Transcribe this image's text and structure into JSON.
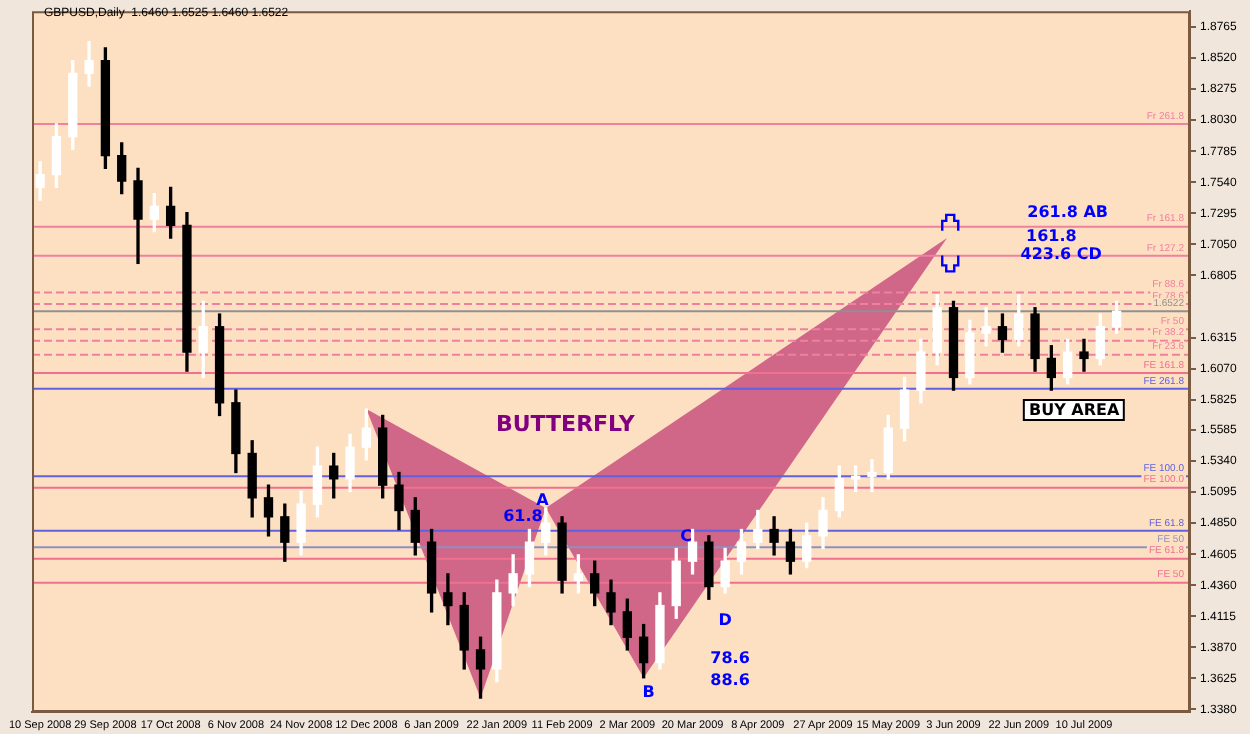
{
  "chart_data": {
    "type": "candlestick",
    "title": "GBPUSD,Daily  1.6460 1.6525 1.6460 1.6522",
    "categories": [
      "10 Sep 2008",
      null,
      null,
      null,
      "29 Sep 2008",
      null,
      null,
      null,
      "17 Oct 2008",
      null,
      null,
      null,
      "6 Nov 2008",
      null,
      null,
      null,
      "24 Nov 2008",
      null,
      null,
      null,
      "12 Dec 2008",
      null,
      null,
      null,
      "6 Jan 2009",
      null,
      null,
      null,
      "22 Jan 2009",
      null,
      null,
      null,
      "11 Feb 2009",
      null,
      null,
      null,
      "2 Mar 2009",
      null,
      null,
      null,
      "20 Mar 2009",
      null,
      null,
      null,
      "8 Apr 2009",
      null,
      null,
      null,
      "27 Apr 2009",
      null,
      null,
      null,
      "15 May 2009",
      null,
      null,
      null,
      "3 Jun 2009",
      null,
      null,
      null,
      "22 Jun 2009",
      null,
      null,
      null,
      "10 Jul 2009",
      null,
      null,
      null,
      null,
      null,
      null
    ],
    "ohlc": [
      [
        1.75,
        1.77,
        1.74,
        1.76
      ],
      [
        1.76,
        1.8,
        1.75,
        1.79
      ],
      [
        1.79,
        1.85,
        1.78,
        1.84
      ],
      [
        1.84,
        1.865,
        1.83,
        1.85
      ],
      [
        1.85,
        1.86,
        1.765,
        1.775
      ],
      [
        1.775,
        1.785,
        1.745,
        1.755
      ],
      [
        1.755,
        1.765,
        1.69,
        1.725
      ],
      [
        1.725,
        1.745,
        1.715,
        1.735
      ],
      [
        1.735,
        1.75,
        1.71,
        1.72
      ],
      [
        1.72,
        1.73,
        1.605,
        1.62
      ],
      [
        1.62,
        1.66,
        1.6,
        1.64
      ],
      [
        1.64,
        1.65,
        1.57,
        1.58
      ],
      [
        1.58,
        1.59,
        1.525,
        1.54
      ],
      [
        1.54,
        1.55,
        1.49,
        1.505
      ],
      [
        1.505,
        1.515,
        1.475,
        1.49
      ],
      [
        1.49,
        1.5,
        1.455,
        1.47
      ],
      [
        1.47,
        1.51,
        1.46,
        1.5
      ],
      [
        1.5,
        1.545,
        1.49,
        1.53
      ],
      [
        1.53,
        1.54,
        1.505,
        1.52
      ],
      [
        1.52,
        1.555,
        1.51,
        1.545
      ],
      [
        1.545,
        1.575,
        1.535,
        1.56
      ],
      [
        1.56,
        1.57,
        1.505,
        1.515
      ],
      [
        1.515,
        1.525,
        1.48,
        1.495
      ],
      [
        1.495,
        1.505,
        1.46,
        1.47
      ],
      [
        1.47,
        1.48,
        1.415,
        1.43
      ],
      [
        1.43,
        1.445,
        1.405,
        1.42
      ],
      [
        1.42,
        1.43,
        1.37,
        1.385
      ],
      [
        1.385,
        1.395,
        1.347,
        1.37
      ],
      [
        1.37,
        1.44,
        1.36,
        1.43
      ],
      [
        1.43,
        1.46,
        1.42,
        1.445
      ],
      [
        1.445,
        1.48,
        1.435,
        1.47
      ],
      [
        1.47,
        1.497,
        1.46,
        1.485
      ],
      [
        1.485,
        1.49,
        1.43,
        1.44
      ],
      [
        1.44,
        1.46,
        1.43,
        1.445
      ],
      [
        1.445,
        1.455,
        1.42,
        1.43
      ],
      [
        1.43,
        1.44,
        1.405,
        1.415
      ],
      [
        1.415,
        1.425,
        1.385,
        1.395
      ],
      [
        1.395,
        1.405,
        1.363,
        1.375
      ],
      [
        1.375,
        1.43,
        1.37,
        1.42
      ],
      [
        1.42,
        1.465,
        1.41,
        1.455
      ],
      [
        1.455,
        1.48,
        1.445,
        1.47
      ],
      [
        1.47,
        1.475,
        1.425,
        1.435
      ],
      [
        1.435,
        1.465,
        1.43,
        1.455
      ],
      [
        1.455,
        1.48,
        1.445,
        1.47
      ],
      [
        1.47,
        1.495,
        1.465,
        1.48
      ],
      [
        1.48,
        1.49,
        1.46,
        1.47
      ],
      [
        1.47,
        1.48,
        1.445,
        1.455
      ],
      [
        1.455,
        1.485,
        1.45,
        1.475
      ],
      [
        1.475,
        1.505,
        1.465,
        1.495
      ],
      [
        1.495,
        1.53,
        1.49,
        1.52
      ],
      [
        1.52,
        1.53,
        1.51,
        1.522
      ],
      [
        1.522,
        1.535,
        1.51,
        1.525
      ],
      [
        1.525,
        1.57,
        1.52,
        1.56
      ],
      [
        1.56,
        1.6,
        1.55,
        1.59
      ],
      [
        1.59,
        1.63,
        1.58,
        1.62
      ],
      [
        1.62,
        1.665,
        1.61,
        1.655
      ],
      [
        1.655,
        1.66,
        1.59,
        1.6
      ],
      [
        1.6,
        1.645,
        1.595,
        1.635
      ],
      [
        1.635,
        1.655,
        1.625,
        1.64
      ],
      [
        1.64,
        1.65,
        1.62,
        1.63
      ],
      [
        1.63,
        1.665,
        1.625,
        1.65
      ],
      [
        1.65,
        1.655,
        1.605,
        1.615
      ],
      [
        1.615,
        1.625,
        1.59,
        1.6
      ],
      [
        1.6,
        1.63,
        1.595,
        1.62
      ],
      [
        1.62,
        1.63,
        1.605,
        1.615
      ],
      [
        1.615,
        1.65,
        1.61,
        1.64
      ],
      [
        1.64,
        1.66,
        1.635,
        1.6522
      ],
      null,
      null,
      null,
      null
    ],
    "colors": [
      "#ffffff",
      "#ffffff",
      "#ffffff",
      "#ffffff",
      "#000000",
      "#000000",
      "#000000",
      "#ffffff",
      "#000000",
      "#000000",
      "#ffffff",
      "#000000",
      "#000000",
      "#000000",
      "#000000",
      "#000000",
      "#ffffff",
      "#ffffff",
      "#000000",
      "#ffffff",
      "#ffffff",
      "#000000",
      "#000000",
      "#000000",
      "#000000",
      "#000000",
      "#000000",
      "#000000",
      "#ffffff",
      "#ffffff",
      "#ffffff",
      "#ffffff",
      "#000000",
      "#ffffff",
      "#000000",
      "#000000",
      "#000000",
      "#000000",
      "#ffffff",
      "#ffffff",
      "#ffffff",
      "#000000",
      "#ffffff",
      "#ffffff",
      "#ffffff",
      "#000000",
      "#000000",
      "#ffffff",
      "#ffffff",
      "#ffffff",
      "#ffffff",
      "#ffffff",
      "#ffffff",
      "#ffffff",
      "#ffffff",
      "#ffffff",
      "#000000",
      "#ffffff",
      "#ffffff",
      "#000000",
      "#ffffff",
      "#000000",
      "#000000",
      "#ffffff",
      "#000000",
      "#ffffff",
      "#ffffff",
      null,
      null,
      null,
      null
    ],
    "ylim": [
      1.336,
      1.889
    ],
    "yticks": [
      1.8765,
      {
        "value": 1.852,
        "label": "1.8520"
      },
      1.8275,
      {
        "value": 1.803,
        "label": "1.8030"
      },
      1.7785,
      {
        "value": 1.754,
        "label": "1.7540"
      },
      1.7295,
      {
        "value": 1.705,
        "label": "1.7050"
      },
      1.6805,
      1.6315,
      {
        "value": 1.607,
        "label": "1.6070"
      },
      1.5825,
      1.5585,
      {
        "value": 1.534,
        "label": "1.5340"
      },
      1.5095,
      {
        "value": 1.485,
        "label": "1.4850"
      },
      1.4605,
      {
        "value": 1.436,
        "label": "1.4360"
      },
      1.4115,
      {
        "value": 1.387,
        "label": "1.3870"
      },
      1.3625,
      {
        "value": 1.338,
        "label": "1.3380"
      }
    ],
    "ref_lines": [
      {
        "axis": "y",
        "value": 1.8,
        "label": "Fr 261.8",
        "color": "#f080a0"
      },
      {
        "axis": "y",
        "value": 1.719,
        "label": "Fr 161.8",
        "color": "#f080a0"
      },
      {
        "axis": "y",
        "value": 1.696,
        "label": "Fr 127.2",
        "color": "#f080a0"
      },
      {
        "axis": "y",
        "value": 1.667,
        "label": "Fr 88.6",
        "color": "#f080a0",
        "line_style": "dashed"
      },
      {
        "axis": "y",
        "value": 1.658,
        "label": "Fr 78.6",
        "color": "#f080a0",
        "line_style": "dashed"
      },
      {
        "axis": "y",
        "value": 1.6522,
        "label": "1.6522",
        "color": "#909090"
      },
      {
        "axis": "y",
        "value": 1.638,
        "label": "Fr 50",
        "color": "#f080a0",
        "line_style": "dashed"
      },
      {
        "axis": "y",
        "value": 1.629,
        "label": "Fr 38.2",
        "color": "#f080a0",
        "line_style": "dashed"
      },
      {
        "axis": "y",
        "value": 1.618,
        "label": "Fr 23.6",
        "color": "#f080a0",
        "line_style": "dashed"
      },
      {
        "axis": "y",
        "value": 1.6035,
        "label": "FE 161.8",
        "color": "#f07090"
      },
      {
        "axis": "y",
        "value": 1.591,
        "label": "FE 261.8",
        "color": "#6060e0"
      },
      {
        "axis": "y",
        "value": 1.522,
        "label": "FE 100.0",
        "color": "#6060e0"
      },
      {
        "axis": "y",
        "value": 1.513,
        "label": "FE 100.0",
        "color": "#f07090"
      },
      {
        "axis": "y",
        "value": 1.479,
        "label": "FE 61.8",
        "color": "#6060e0"
      },
      {
        "axis": "y",
        "value": 1.466,
        "label": "FE 50",
        "color": "#9090c0"
      },
      {
        "axis": "y",
        "value": 1.457,
        "label": "FE 61.8",
        "color": "#f07090"
      },
      {
        "axis": "y",
        "value": 1.438,
        "label": "FE 50",
        "color": "#f07090"
      }
    ],
    "annotations": [
      "BUTTERFLY",
      "A",
      "61.8",
      "B",
      "C",
      "D",
      "78.6",
      "88.6",
      "261.8 AB",
      "161.8",
      "423.6 CD",
      "BUY AREA"
    ]
  }
}
